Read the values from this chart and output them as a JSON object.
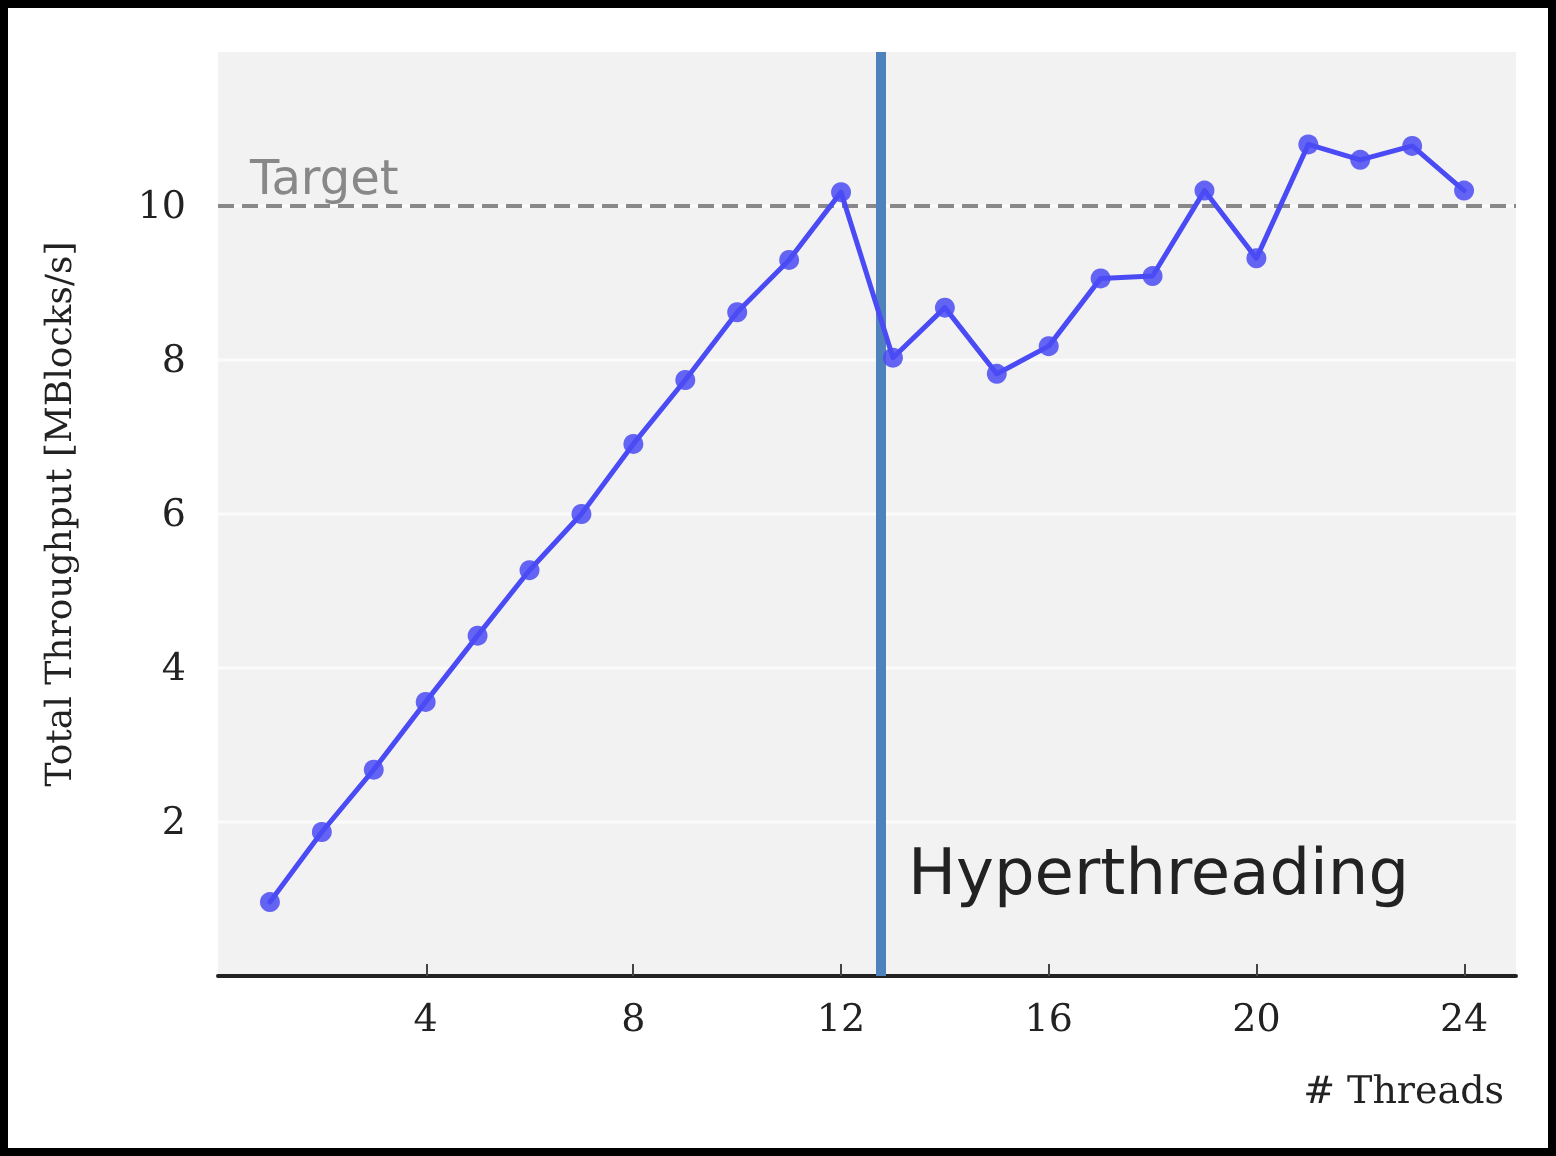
{
  "chart_data": {
    "type": "line",
    "xlabel": "# Threads",
    "ylabel": "Total Throughput [MBlocks/s]",
    "x": [
      1,
      2,
      3,
      4,
      5,
      6,
      7,
      8,
      9,
      10,
      11,
      12,
      13,
      14,
      15,
      16,
      17,
      18,
      19,
      20,
      21,
      22,
      23,
      24
    ],
    "series": [
      {
        "color": "#4b4bf5",
        "values": [
          0.96,
          1.87,
          2.68,
          3.56,
          4.42,
          5.27,
          6.0,
          6.91,
          7.74,
          8.62,
          9.3,
          10.18,
          8.03,
          8.68,
          7.82,
          8.18,
          9.06,
          9.09,
          10.2,
          9.32,
          10.8,
          10.6,
          10.78,
          10.2
        ]
      }
    ],
    "xlim": [
      0,
      25
    ],
    "xticks": [
      4,
      8,
      12,
      16,
      20,
      24
    ],
    "ylim": [
      0,
      12
    ],
    "yticks": [
      2,
      4,
      6,
      8,
      10
    ],
    "ref_lines": [
      {
        "axis": "y",
        "value": 10,
        "label": "Target",
        "color": "#888888",
        "line_style": "dashed"
      },
      {
        "axis": "x",
        "value": 12.75,
        "label": "Hyperthreading",
        "color": "#4f81bd",
        "line_style": "solid"
      }
    ],
    "grid": "y",
    "marker": "circle",
    "line_style": "solid"
  }
}
